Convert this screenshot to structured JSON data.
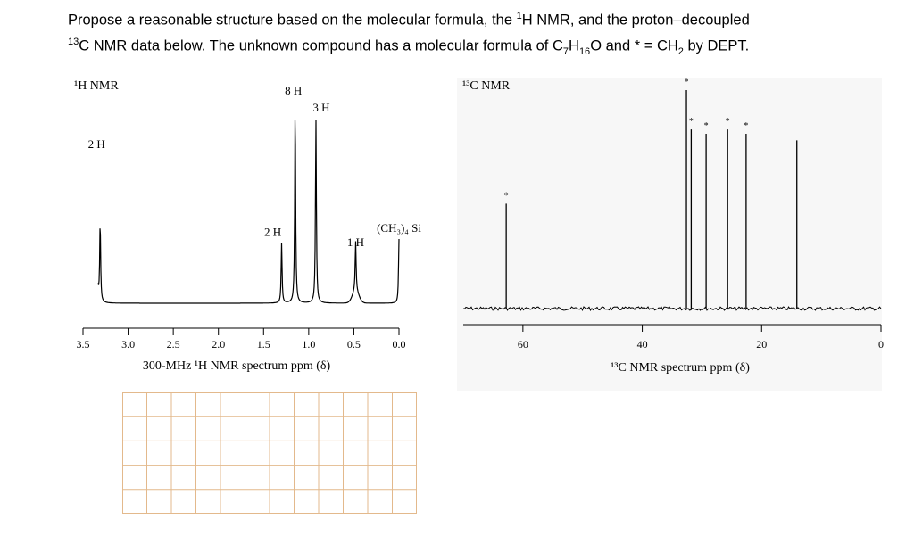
{
  "question": {
    "line1_a": "Propose a reasonable structure based on the molecular formula, the ",
    "line1_sup": "1",
    "line1_b": "H NMR, and the proton–decoupled",
    "line2_sup": "13",
    "line2_a": "C NMR data below. The unknown compound has a molecular formula of C",
    "line2_sub1": "7",
    "line2_b": "H",
    "line2_sub2": "16",
    "line2_c": "O and * = CH",
    "line2_sub3": "2",
    "line2_d": " by DEPT."
  },
  "colors": {
    "line": "#000000",
    "grid": "#e3b98c",
    "panel": "#f7f7f7"
  },
  "chart_data": [
    {
      "type": "line",
      "title": "¹H NMR",
      "xlabel": "300-MHz ¹H NMR spectrum ppm (δ)",
      "xlim": [
        3.5,
        0.0
      ],
      "xticks": [
        "3.5",
        "3.0",
        "2.5",
        "2.0",
        "1.5",
        "1.0",
        "0.5",
        "0.0"
      ],
      "peaks": [
        {
          "ppm": 3.35,
          "height": 0.73,
          "label": "2 H"
        },
        {
          "ppm": 3.31,
          "height": 0.4,
          "label": ""
        },
        {
          "ppm": 1.3,
          "height": 0.3,
          "label": "2 H"
        },
        {
          "ppm": 1.15,
          "height": 1.0,
          "label": "8 H"
        },
        {
          "ppm": 0.92,
          "height": 0.92,
          "label": "3 H"
        },
        {
          "ppm": 0.48,
          "height": 0.25,
          "label": "1 H"
        },
        {
          "ppm": 0.0,
          "height": 0.32,
          "label": "(CH₃)₄ Si"
        }
      ]
    },
    {
      "type": "bar",
      "title": "¹³C NMR",
      "xlabel": "¹³C NMR spectrum ppm (δ)",
      "xlim": [
        70,
        0
      ],
      "xticks": [
        "60",
        "40",
        "20",
        "0"
      ],
      "peaks": [
        {
          "ppm": 62.8,
          "height": 0.48,
          "dept": "*"
        },
        {
          "ppm": 32.6,
          "height": 1.0,
          "dept": "*"
        },
        {
          "ppm": 31.8,
          "height": 0.82,
          "dept": "*"
        },
        {
          "ppm": 29.3,
          "height": 0.8,
          "dept": "*"
        },
        {
          "ppm": 25.7,
          "height": 0.82,
          "dept": "*"
        },
        {
          "ppm": 22.6,
          "height": 0.8,
          "dept": "*"
        },
        {
          "ppm": 14.1,
          "height": 0.77,
          "dept": ""
        }
      ]
    }
  ]
}
